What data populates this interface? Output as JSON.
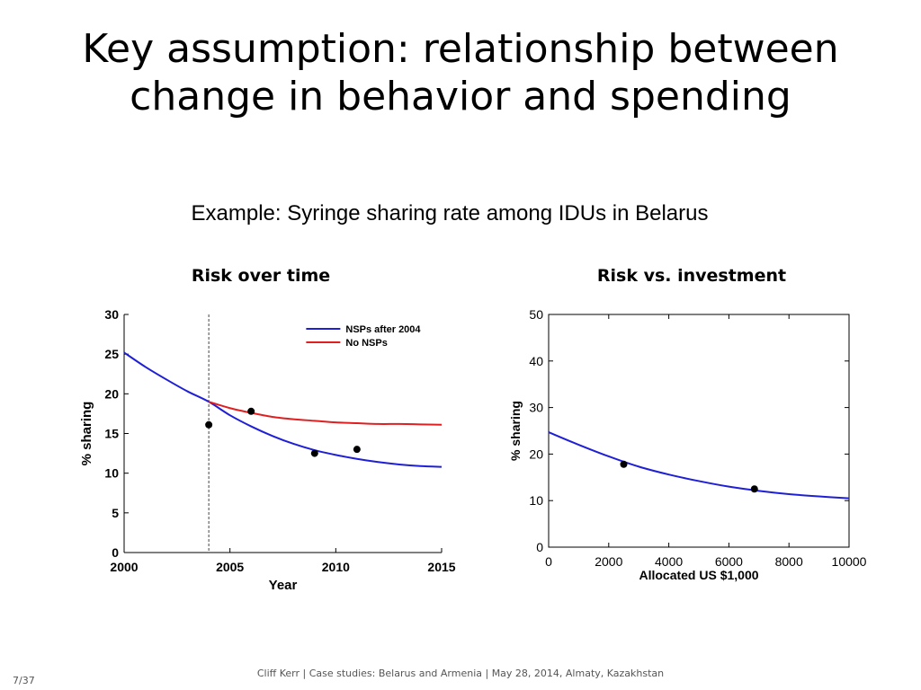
{
  "slide": {
    "title_line1": "Key assumption: relationship between",
    "title_line2": "change in behavior and spending",
    "subtitle": "Example: Syringe sharing rate among IDUs in Belarus",
    "footer": "Cliff Kerr | Case studies: Belarus and Armenia | May 28, 2014, Almaty, Kazakhstan",
    "page_number": "7/37"
  },
  "chart_data": [
    {
      "type": "line",
      "title": "Risk over time",
      "xlabel": "Year",
      "ylabel": "% sharing",
      "xlim": [
        2000,
        2015
      ],
      "ylim": [
        0,
        30
      ],
      "xticks": [
        2000,
        2005,
        2010,
        2015
      ],
      "yticks": [
        0,
        5,
        10,
        15,
        20,
        25,
        30
      ],
      "grid": false,
      "legend_position": "top-right",
      "vertical_line_x": 2004,
      "series": [
        {
          "name": "NSPs after 2004",
          "color": "#1f1fd6",
          "x": [
            2000,
            2001,
            2002,
            2003,
            2004,
            2005,
            2006,
            2007,
            2008,
            2009,
            2010,
            2011,
            2012,
            2013,
            2014,
            2015
          ],
          "y": [
            25.2,
            23.4,
            21.8,
            20.3,
            19.0,
            17.3,
            15.9,
            14.7,
            13.7,
            12.9,
            12.3,
            11.8,
            11.4,
            11.1,
            10.9,
            10.8
          ]
        },
        {
          "name": "No NSPs",
          "color": "#e02020",
          "x": [
            2004,
            2005,
            2006,
            2007,
            2008,
            2009,
            2010,
            2011,
            2012,
            2013,
            2014,
            2015
          ],
          "y": [
            19.0,
            18.2,
            17.6,
            17.1,
            16.8,
            16.6,
            16.4,
            16.3,
            16.2,
            16.2,
            16.15,
            16.1
          ]
        }
      ],
      "points": {
        "x": [
          2004,
          2006,
          2009,
          2011
        ],
        "y": [
          16.1,
          17.8,
          12.5,
          13.0
        ]
      }
    },
    {
      "type": "line",
      "title": "Risk vs. investment",
      "xlabel": "Allocated US $1,000",
      "ylabel": "% sharing",
      "xlim": [
        0,
        10000
      ],
      "ylim": [
        0,
        50
      ],
      "xticks": [
        0,
        2000,
        4000,
        6000,
        8000,
        10000
      ],
      "yticks": [
        0,
        10,
        20,
        30,
        40,
        50
      ],
      "grid": false,
      "series": [
        {
          "name": "",
          "color": "#1f1fd6",
          "x": [
            0,
            1000,
            2000,
            3000,
            4000,
            5000,
            6000,
            7000,
            8000,
            9000,
            10000
          ],
          "y": [
            24.7,
            22.0,
            19.5,
            17.3,
            15.6,
            14.2,
            13.0,
            12.1,
            11.4,
            10.9,
            10.5
          ]
        }
      ],
      "points": {
        "x": [
          2500,
          6850
        ],
        "y": [
          17.8,
          12.5
        ]
      }
    }
  ]
}
